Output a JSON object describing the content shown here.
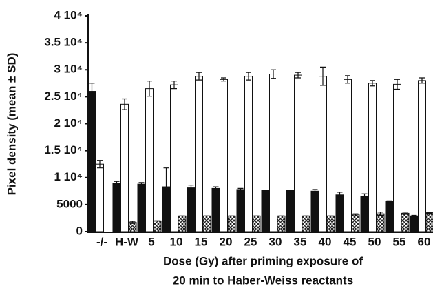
{
  "chart_data": {
    "type": "bar",
    "ylabel": "Pixel density (mean ± SD)",
    "xlabel": [
      "Dose (Gy) after priming exposure of",
      "20 min to Haber-Weiss reactants"
    ],
    "categories": [
      "-/-",
      "H-W",
      "5",
      "10",
      "15",
      "20",
      "25",
      "30",
      "35",
      "40",
      "45",
      "50",
      "55",
      "60"
    ],
    "series": [
      {
        "color": "#111111",
        "pattern": "solid",
        "values": [
          26000,
          9000,
          8800,
          8300,
          8100,
          8000,
          7800,
          7700,
          7700,
          7500,
          6800,
          6500,
          5600,
          2900
        ],
        "errors": [
          1500,
          300,
          300,
          3500,
          500,
          300,
          200,
          0,
          0,
          300,
          500,
          500,
          100,
          100
        ]
      },
      {
        "color": "#ffffff",
        "pattern": "solid",
        "values": [
          12500,
          23600,
          26500,
          27200,
          28800,
          28200,
          28800,
          29200,
          29000,
          28800,
          28200,
          27500,
          27300,
          28000
        ],
        "errors": [
          700,
          1000,
          1400,
          700,
          700,
          300,
          700,
          800,
          500,
          1700,
          700,
          500,
          900,
          500
        ]
      },
      {
        "color": "#555555",
        "pattern": "crosshatch",
        "values": [
          null,
          1700,
          2000,
          2900,
          2900,
          2900,
          2900,
          2900,
          2900,
          2900,
          3100,
          3300,
          3400,
          3500
        ],
        "errors": [
          null,
          200,
          0,
          0,
          0,
          0,
          0,
          0,
          0,
          0,
          200,
          300,
          200,
          100
        ]
      }
    ],
    "ylim": [
      0,
      40000
    ],
    "yticks": [
      0,
      5000,
      {
        "value": 10000,
        "label": "1 10⁴"
      },
      {
        "value": 15000,
        "label": "1.5 10⁴"
      },
      {
        "value": 20000,
        "label": "2 10⁴"
      },
      {
        "value": 25000,
        "label": "2.5 10⁴"
      },
      {
        "value": 30000,
        "label": "3 10⁴"
      },
      {
        "value": 35000,
        "label": "3.5 10⁴"
      },
      {
        "value": 40000,
        "label": "4 10⁴"
      }
    ],
    "grid": false
  }
}
